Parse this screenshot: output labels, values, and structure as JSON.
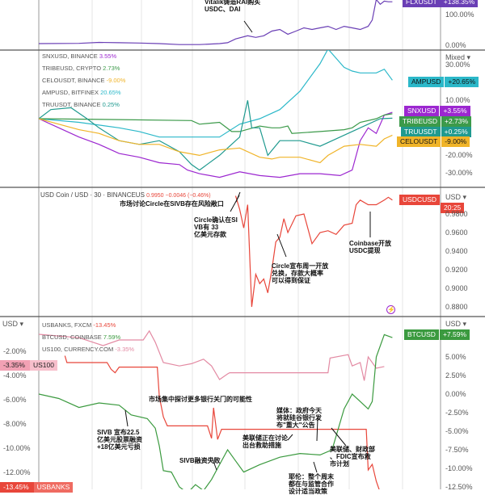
{
  "chart_data": [
    {
      "type": "line",
      "name": "FLXUSDT panel",
      "yaxis": {
        "ticks": [
          "100.00%",
          "0.00%"
        ]
      },
      "series": [
        {
          "name": "FLXUSDT",
          "color": "#6a3fb5",
          "last": "+138.35%",
          "t": [
            0,
            10,
            15,
            20,
            25,
            30,
            35,
            40,
            45,
            47,
            49,
            52,
            54,
            56,
            58,
            60,
            62,
            64,
            66,
            68,
            70,
            72,
            74,
            76,
            78,
            80,
            82,
            83,
            84,
            85,
            86,
            87,
            88
          ],
          "v": [
            5,
            6,
            9,
            8,
            7,
            5,
            2,
            2,
            5,
            8,
            20,
            30,
            25,
            30,
            45,
            50,
            35,
            45,
            55,
            50,
            55,
            60,
            50,
            60,
            55,
            50,
            60,
            80,
            145,
            130,
            140,
            138,
            138
          ]
        }
      ],
      "annotation": "Vitalik铸造RAI购买 USDC、DAI"
    },
    {
      "type": "line",
      "name": "Mixed panel",
      "ylabel": "Mixed",
      "yaxis": {
        "ticks": [
          "30.00%",
          "10.00%",
          "-20.00%",
          "-30.00%"
        ]
      },
      "series": [
        {
          "name": "AMPUSD",
          "legend": "AMPUSD, BITFINEX",
          "legend_val": "20.65%",
          "color": "#2bb8c9",
          "last": "+20.65%",
          "t": [
            0,
            10,
            20,
            25,
            30,
            40,
            45,
            50,
            55,
            60,
            65,
            70,
            72,
            74,
            76,
            78,
            80,
            84,
            86,
            88
          ],
          "v": [
            0,
            -2,
            -5,
            -7,
            -10,
            -10,
            -10,
            -3,
            0,
            5,
            15,
            30,
            38,
            33,
            28,
            26,
            25,
            25,
            27,
            21
          ]
        },
        {
          "name": "SNXUSD",
          "legend": "SNXUSD, BINANCE",
          "legend_val": "3.55%",
          "color": "#9c27d0",
          "last": "+3.55%",
          "t": [
            0,
            5,
            10,
            15,
            20,
            25,
            30,
            35,
            37,
            40,
            45,
            50,
            55,
            60,
            65,
            70,
            75,
            78,
            80,
            82,
            84,
            86,
            88
          ],
          "v": [
            0,
            -5,
            -10,
            -14,
            -19,
            -21,
            -24,
            -25,
            -28,
            -30,
            -32,
            -29,
            -31,
            -32,
            -30,
            -30,
            -31,
            -28,
            -12,
            -5,
            -8,
            2,
            3.5
          ]
        },
        {
          "name": "TRIBEUSD",
          "legend": "TRIBEUSD, CRYPTO",
          "legend_val": "2.73%",
          "color": "#3c9a4a",
          "last": "+2.73%",
          "t": [
            0,
            20,
            38,
            40,
            45,
            48,
            50,
            55,
            58,
            60,
            62,
            63,
            70,
            76,
            78,
            80,
            84,
            86,
            88
          ],
          "v": [
            0,
            -0.5,
            -1,
            -3,
            -2,
            -7,
            -7,
            -4,
            -5,
            -5,
            -4,
            -8,
            -7,
            -6,
            -5,
            -2,
            0,
            2,
            2.7
          ]
        },
        {
          "name": "TRUUSDT",
          "legend": "TRUUSDT, BINANCE",
          "legend_val": "0.25%",
          "color": "#1f9a8f",
          "last": "+0.25%",
          "t": [
            0,
            3,
            8,
            12,
            15,
            20,
            25,
            30,
            35,
            38,
            40,
            45,
            50,
            52,
            53,
            55,
            57,
            60,
            65,
            70,
            75,
            80,
            85,
            88
          ],
          "v": [
            0,
            5,
            6,
            0,
            -5,
            -12,
            -14,
            -12,
            -18,
            -25,
            -28,
            -20,
            -10,
            10,
            -5,
            -5,
            -20,
            -12,
            -12,
            -15,
            -10,
            -5,
            0,
            0.25
          ]
        },
        {
          "name": "CELOUSDT",
          "legend": "CELOUSDT, BINANCE",
          "legend_val": "-9.00%",
          "color": "#f0b429",
          "last": "-9.00%",
          "t": [
            0,
            5,
            10,
            15,
            20,
            25,
            30,
            35,
            40,
            45,
            50,
            55,
            58,
            60,
            65,
            70,
            72,
            76,
            80,
            84,
            86,
            88
          ],
          "v": [
            0,
            -3,
            -6,
            -8,
            -12,
            -14,
            -14,
            -18,
            -20,
            -17,
            -16,
            -21,
            -22,
            -21,
            -21,
            -24,
            -20,
            -15,
            -14,
            -15,
            -11,
            -9
          ]
        }
      ]
    },
    {
      "type": "line",
      "name": "USDC panel",
      "title": "USD Coin / USD · 30 · BINANCEUS",
      "header_values": "0.9950 −0.0046 (−0.46%)",
      "ylabel": "USD",
      "yaxis": {
        "ticks": [
          "0.9800",
          "0.9600",
          "0.9400",
          "0.9200",
          "0.9000",
          "0.8800"
        ]
      },
      "series": [
        {
          "name": "USDCUSD",
          "color": "#e8463a",
          "last_time": "20:25",
          "t": [
            49,
            50,
            51,
            52,
            53,
            54,
            55,
            56,
            57,
            58,
            59,
            60,
            61,
            62,
            64,
            66,
            68,
            70,
            72,
            74,
            76,
            78,
            79,
            80,
            82,
            84,
            86,
            87,
            88
          ],
          "v": [
            0.9995,
            0.985,
            0.965,
            0.99,
            0.88,
            0.915,
            0.905,
            0.91,
            0.895,
            0.92,
            0.95,
            0.955,
            0.975,
            0.96,
            0.978,
            0.98,
            0.948,
            0.96,
            0.962,
            0.958,
            0.968,
            0.97,
            0.99,
            0.995,
            0.99,
            0.99,
            0.995,
            0.998,
            0.995
          ]
        }
      ]
    },
    {
      "type": "line",
      "name": "Banks panel",
      "ylabel_left": "USD",
      "ylabel_right": "USD",
      "yaxis_left": {
        "ticks": [
          "-2.00%",
          "-4.00%",
          "-6.00%",
          "-8.00%",
          "-10.00%",
          "-12.00%"
        ]
      },
      "yaxis_right": {
        "ticks": [
          "5.00%",
          "2.50%",
          "0.00%",
          "-2.50%",
          "-5.00%",
          "-7.50%",
          "-10.00%",
          "-12.50%"
        ]
      },
      "series": [
        {
          "name": "US100",
          "legend": "US100, CURRENCY.COM",
          "legend_val": "-3.35%",
          "color": "#e38aa3",
          "last": "-3.35%",
          "axis": "left",
          "t": [
            0,
            10,
            16,
            20,
            26,
            27.5,
            29,
            31,
            35,
            38,
            41,
            43,
            45,
            47,
            47.5,
            72,
            72.5,
            77,
            78,
            80,
            81,
            82,
            84,
            86
          ],
          "v": [
            -0.5,
            -0.8,
            -1.5,
            -1,
            -1,
            -0.2,
            -1.2,
            -3,
            -3.3,
            -3.1,
            -2.7,
            -3.3,
            -4.5,
            -4,
            -3.9,
            -3.9,
            -2.6,
            -2.3,
            -3.3,
            -3,
            -4.6,
            -2.5,
            -3.5,
            -3.35
          ]
        },
        {
          "name": "USBANKS",
          "legend": "USBANKS, FXCM",
          "legend_val": "-13.45%",
          "color": "#e8463a",
          "last": "-13.45%",
          "axis": "left",
          "t": [
            6.5,
            7,
            17,
            18,
            19,
            20,
            29.5,
            30,
            31,
            32,
            42,
            43,
            43.5,
            44.5,
            45.5,
            81.5,
            82,
            83,
            84,
            85
          ],
          "v": [
            -2.4,
            -3,
            -3,
            -3.6,
            -3.9,
            -3.4,
            -3.4,
            -6,
            -7.8,
            -8.6,
            -8.6,
            -9.7,
            -7,
            -9.8,
            -8.9,
            -8.9,
            -12.5,
            -12,
            -13.5,
            -14.5
          ]
        },
        {
          "name": "BTCUSD",
          "legend": "BTCUSD, COINBASE",
          "legend_val": "7.59%",
          "color": "#3b9a3f",
          "last": "+7.59%",
          "axis": "right",
          "t": [
            0,
            5,
            10,
            15,
            20,
            23,
            27,
            29,
            30,
            31,
            33,
            35,
            37,
            39,
            41,
            43,
            45,
            47,
            49,
            51,
            55,
            60,
            65,
            70,
            73,
            76,
            78,
            80,
            82,
            83,
            84,
            86,
            88
          ],
          "v": [
            0,
            -0.6,
            -1.8,
            -1.2,
            -1.5,
            -2.8,
            -3.3,
            -4.6,
            -7,
            -10.3,
            -10.5,
            -12.5,
            -13.3,
            -12.2,
            -13,
            -11.5,
            -9.5,
            -7.5,
            -9,
            -10.5,
            -9.5,
            -8.5,
            -8,
            -8.2,
            -7.5,
            -2,
            0,
            -1,
            -2,
            -1,
            5,
            8,
            7.6
          ]
        }
      ]
    }
  ],
  "annotations": {
    "vitalik": "Vitalik铸造RAI购买\nUSDC、DAI",
    "circle_risk": "市场讨论Circle在SIVB存在风险敞口",
    "circle_confirm": "Circle确认在SI\nVB有 33\n亿美元存款",
    "circle_monday": "Circle宣布周一开放\n兑换，存款大概率\n可以得到保证",
    "coinbase": "Coinbase开放\nUSDC提现",
    "more_banks": "市场集中探讨更多银行关门的可能性",
    "sivb_raise": "SIVB 宣布22.5\n亿美元股票融资\n+18亿美元亏损",
    "sivb_fail": "SIVB融资失败",
    "fed_discuss": "美联储正在讨论\n出台救助措施",
    "media": "媒体：政府今天\n将就硅谷银行发\n布\"重大\"公告",
    "yellen": "耶伦：整个周末\n都在与监管合作\n设计适当政策",
    "fed_plan": "美联储、财政部\n、FDIC宣布救\n市计划"
  },
  "labels": {
    "mixed": "Mixed",
    "usd": "USD",
    "usdc_tag": "USDCUSD",
    "time_tag": "20:25",
    "flx_tag": "FLXUSDT",
    "flx_val": "+138.35%"
  }
}
